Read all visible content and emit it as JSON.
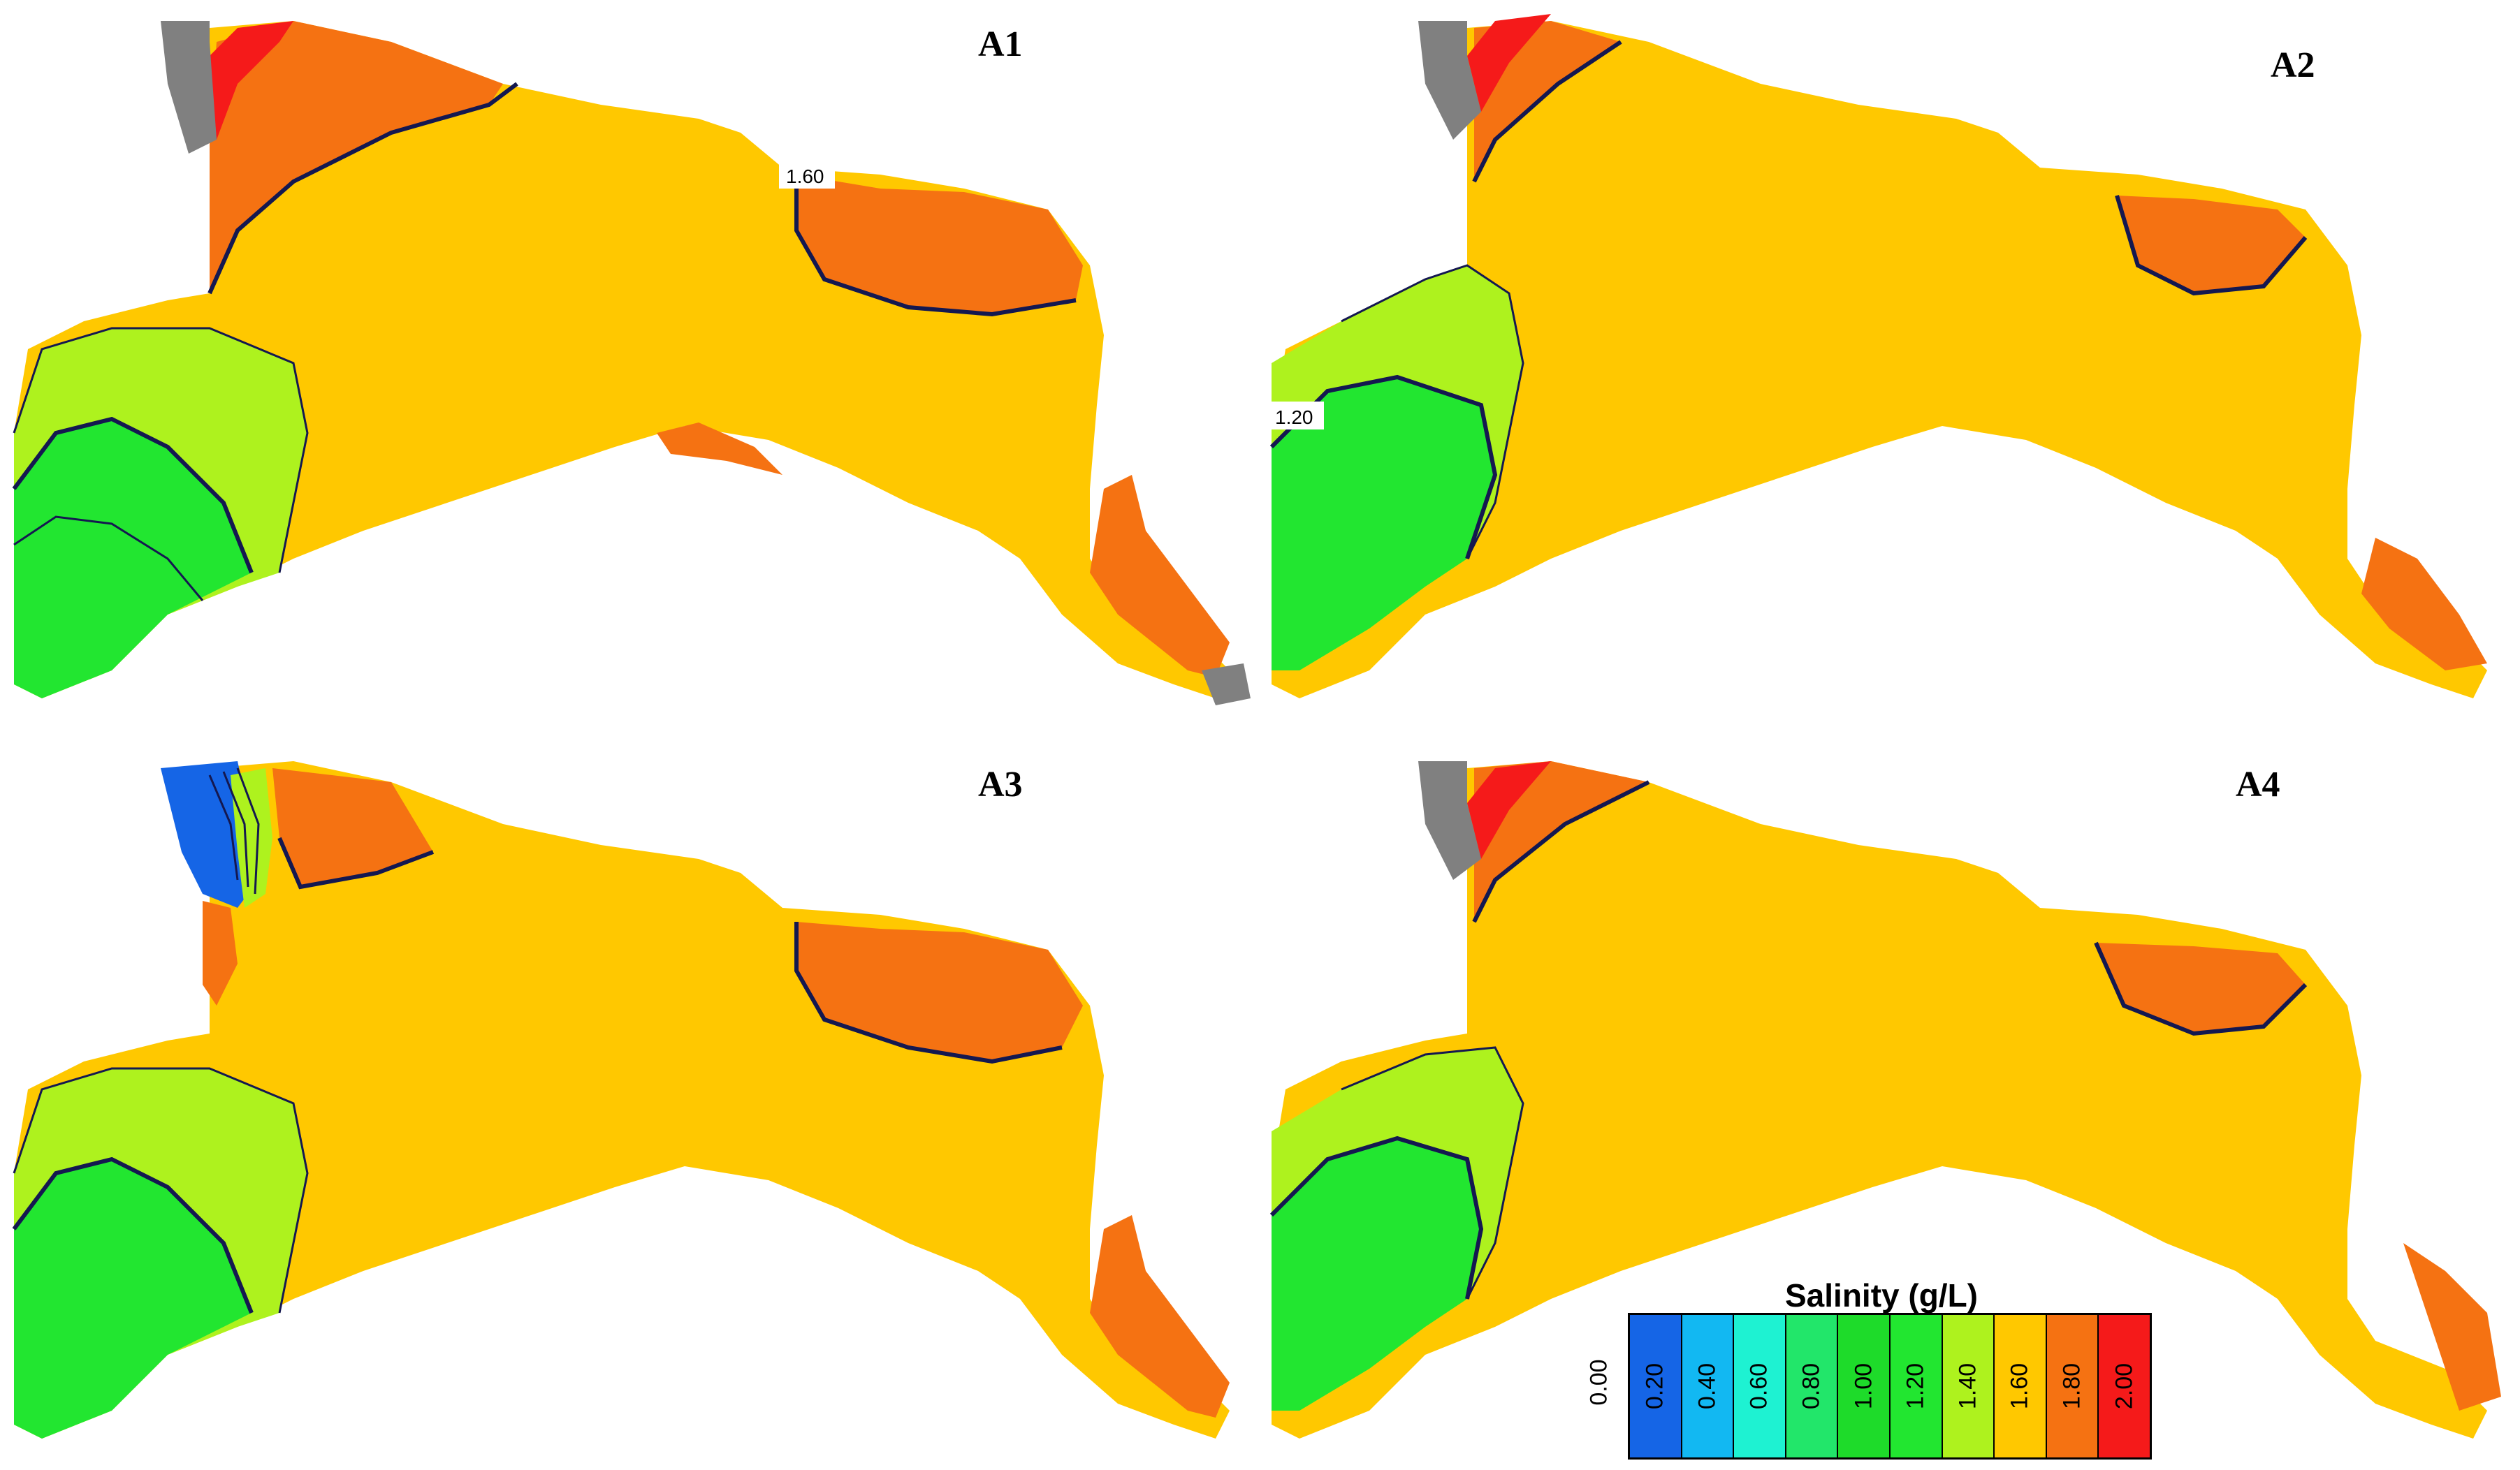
{
  "panels": [
    {
      "id": "A1",
      "label": "A1",
      "contour_labels": [
        "1.60"
      ]
    },
    {
      "id": "A2",
      "label": "A2",
      "contour_labels": [
        "1.20"
      ]
    },
    {
      "id": "A3",
      "label": "A3",
      "contour_labels": []
    },
    {
      "id": "A4",
      "label": "A4",
      "contour_labels": []
    }
  ],
  "legend": {
    "title": "Salinity (g/L)",
    "zero_label": "0.00",
    "classes": [
      {
        "label": "0.20",
        "color": "#1565e6"
      },
      {
        "label": "0.40",
        "color": "#12b8f2"
      },
      {
        "label": "0.60",
        "color": "#1ef2d2"
      },
      {
        "label": "0.80",
        "color": "#22e66a"
      },
      {
        "label": "1.00",
        "color": "#1edb2a"
      },
      {
        "label": "1.20",
        "color": "#22e630"
      },
      {
        "label": "1.40",
        "color": "#aef21e"
      },
      {
        "label": "1.60",
        "color": "#ffc800"
      },
      {
        "label": "1.80",
        "color": "#f57212"
      },
      {
        "label": "2.00",
        "color": "#f51a1a"
      }
    ]
  },
  "colors": {
    "green": "#22e630",
    "lightgreen": "#aef21e",
    "yellow": "#ffc800",
    "orange": "#f57212",
    "red": "#f51a1a",
    "gray": "#808080",
    "blue": "#1565e6",
    "contour": "#141850"
  }
}
